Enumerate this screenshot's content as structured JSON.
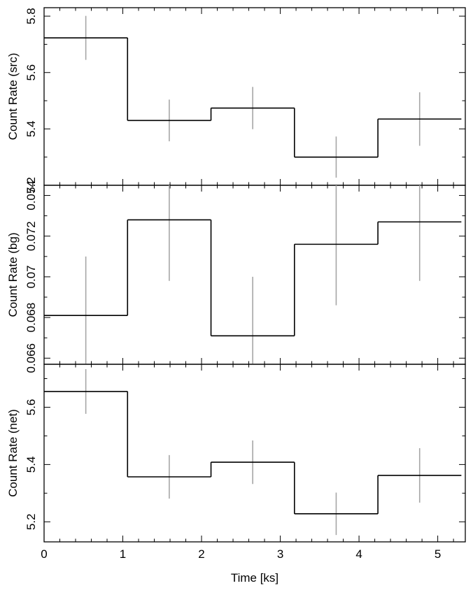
{
  "chart_data": [
    {
      "type": "line",
      "panel": "top",
      "ylabel": "Count Rate (src)",
      "xlim": [
        0,
        5.35
      ],
      "ylim": [
        5.2,
        5.83
      ],
      "yticks": [
        5.2,
        5.4,
        5.6,
        5.8
      ],
      "ytick_labels": [
        "5.2",
        "5.4",
        "5.6",
        "5.8"
      ],
      "bin_edges": [
        0,
        1.06,
        2.12,
        3.18,
        4.24,
        5.3
      ],
      "centers": [
        0.53,
        1.59,
        2.65,
        3.71,
        4.77
      ],
      "values": [
        5.723,
        5.43,
        5.474,
        5.3,
        5.435
      ],
      "errors": [
        0.078,
        0.074,
        0.075,
        0.073,
        0.095
      ]
    },
    {
      "type": "line",
      "panel": "middle",
      "ylabel": "Count Rate (bg)",
      "xlim": [
        0,
        5.35
      ],
      "ylim": [
        0.0657,
        0.0745
      ],
      "yticks": [
        0.066,
        0.068,
        0.07,
        0.072,
        0.074
      ],
      "ytick_labels": [
        "0.066",
        "0.068",
        "0.07",
        "0.072",
        "0.074"
      ],
      "bin_edges": [
        0,
        1.06,
        2.12,
        3.18,
        4.24,
        5.3
      ],
      "centers": [
        0.53,
        1.59,
        2.65,
        3.71,
        4.77
      ],
      "values": [
        0.0681,
        0.0728,
        0.0671,
        0.0716,
        0.0727
      ],
      "errors": [
        0.0029,
        0.003,
        0.0029,
        0.003,
        0.0029
      ]
    },
    {
      "type": "line",
      "panel": "bottom",
      "ylabel": "Count Rate (net)",
      "xlabel": "Time [ks]",
      "xlim": [
        0,
        5.35
      ],
      "ylim": [
        5.13,
        5.75
      ],
      "yticks": [
        5.2,
        5.4,
        5.6
      ],
      "ytick_labels": [
        "5.2",
        "5.4",
        "5.6"
      ],
      "xticks": [
        0,
        1,
        2,
        3,
        4,
        5
      ],
      "xtick_labels": [
        "0",
        "1",
        "2",
        "3",
        "4",
        "5"
      ],
      "bin_edges": [
        0,
        1.06,
        2.12,
        3.18,
        4.24,
        5.3
      ],
      "centers": [
        0.53,
        1.59,
        2.65,
        3.71,
        4.77
      ],
      "values": [
        5.655,
        5.357,
        5.408,
        5.228,
        5.362
      ],
      "errors": [
        0.078,
        0.076,
        0.076,
        0.074,
        0.095
      ]
    }
  ],
  "colors": {
    "step_line": "#000000",
    "error_bar": "#a6a6a6",
    "frame": "#000000"
  }
}
